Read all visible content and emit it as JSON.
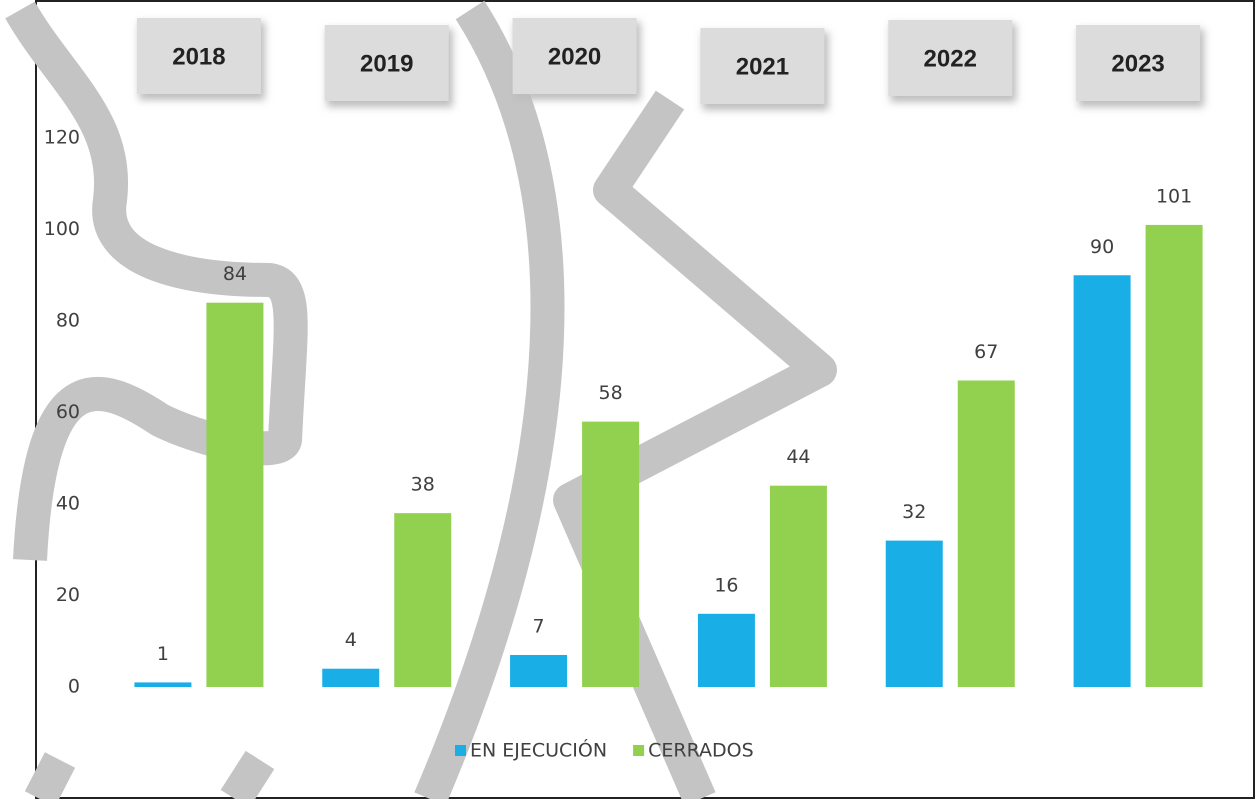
{
  "chart_data": {
    "type": "bar",
    "categories": [
      "2018",
      "2019",
      "2020",
      "2021",
      "2022",
      "2023"
    ],
    "series": [
      {
        "name": "EN EJECUCIÓN",
        "color": "#1aaee6",
        "values": [
          1,
          4,
          7,
          16,
          32,
          90
        ]
      },
      {
        "name": "CERRADOS",
        "color": "#92d050",
        "values": [
          84,
          38,
          58,
          44,
          67,
          101
        ]
      }
    ],
    "ylim": [
      0,
      120
    ],
    "yticks": [
      0,
      20,
      40,
      60,
      80,
      100,
      120
    ],
    "grid": false
  }
}
